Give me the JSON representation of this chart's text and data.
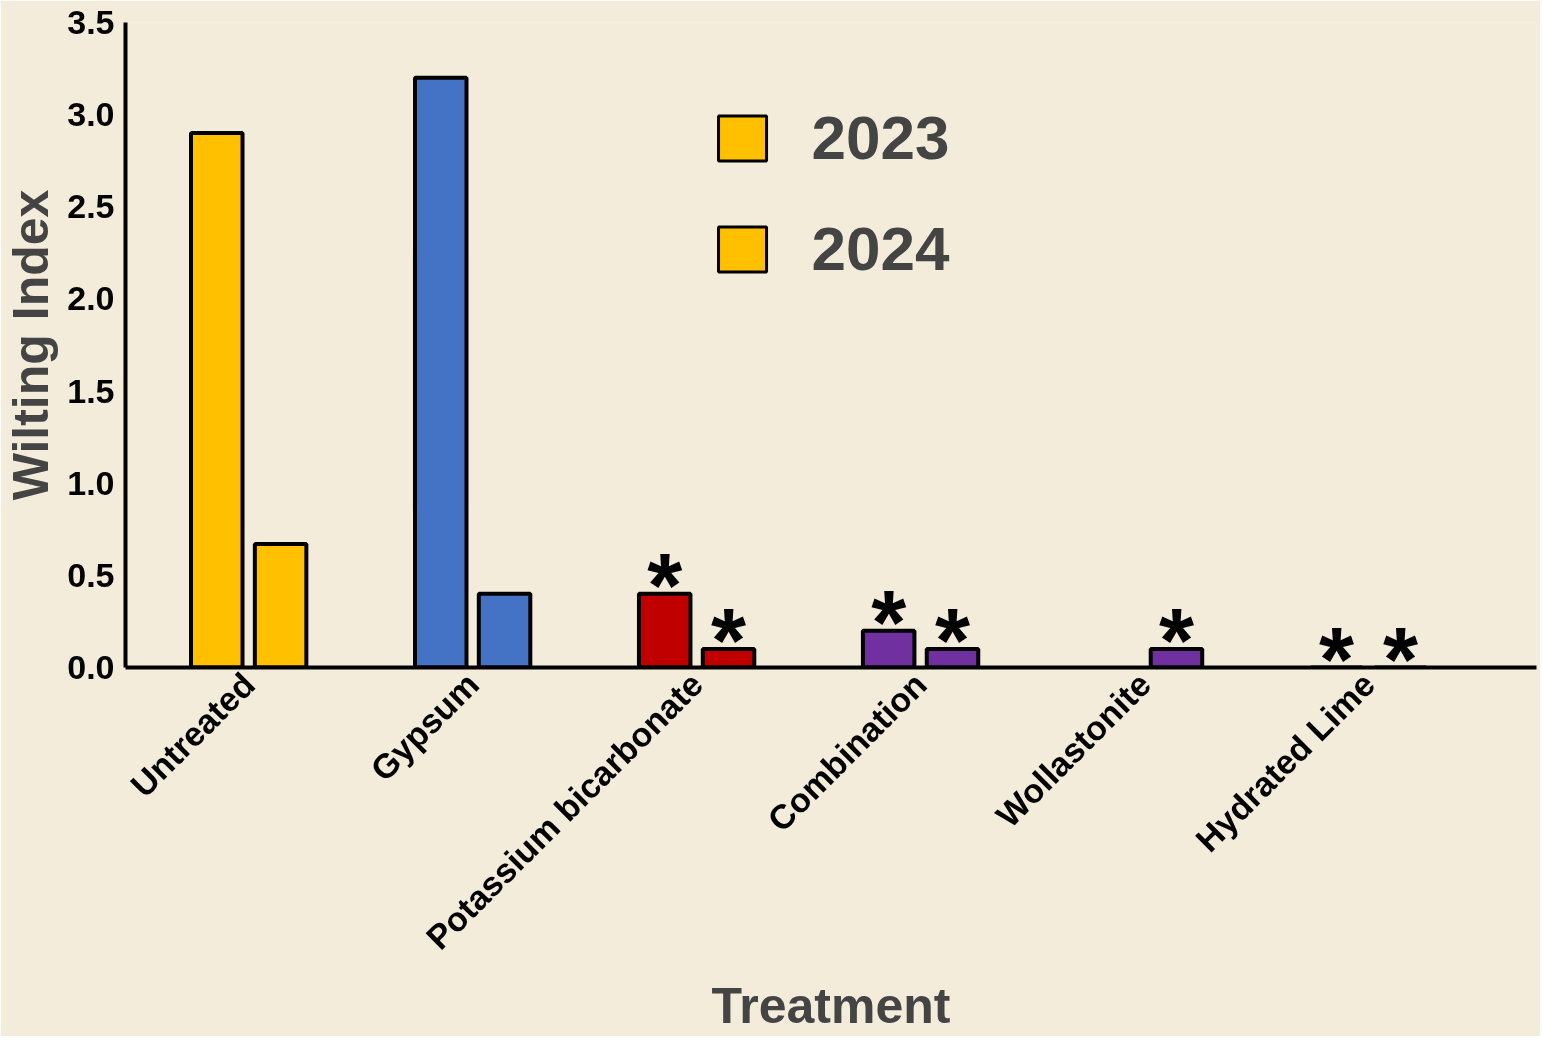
{
  "chart_data": {
    "type": "bar",
    "xlabel": "Treatment",
    "ylabel": "Wilting Index",
    "categories": [
      "Untreated",
      "Gypsum",
      "Potassium bicarbonate",
      "Combination",
      "Wollastonite",
      "Hydrated Lime"
    ],
    "series": [
      {
        "name": "2023",
        "color": "#ffc000",
        "colors": [
          "#ffc000",
          "#4472c4",
          "#c00000",
          "#7030a0",
          "#7030a0",
          "#7030a0"
        ],
        "values": [
          2.9,
          3.2,
          0.4,
          0.2,
          null,
          0
        ]
      },
      {
        "name": "2024",
        "color": "#ffc000",
        "colors": [
          "#ffc000",
          "#4472c4",
          "#c00000",
          "#7030a0",
          "#7030a0",
          "#7030a0"
        ],
        "values": [
          0.67,
          0.4,
          0.1,
          0.1,
          0.1,
          0
        ]
      }
    ],
    "ylim": [
      0,
      3.5
    ],
    "yticks": [
      {
        "value": 0,
        "label": "0.0"
      },
      {
        "value": 0.5,
        "label": "0.5"
      },
      {
        "value": 1,
        "label": "1.0"
      },
      {
        "value": 1.5,
        "label": "1.5"
      },
      {
        "value": 2,
        "label": "2.0"
      },
      {
        "value": 2.5,
        "label": "2.5"
      },
      {
        "value": 3,
        "label": "3.0"
      },
      {
        "value": 3.5,
        "label": "3.5"
      }
    ],
    "grid": false,
    "legend": "top",
    "annotations": [
      "*",
      "*",
      "*",
      "*",
      "*",
      "*",
      "*"
    ]
  }
}
